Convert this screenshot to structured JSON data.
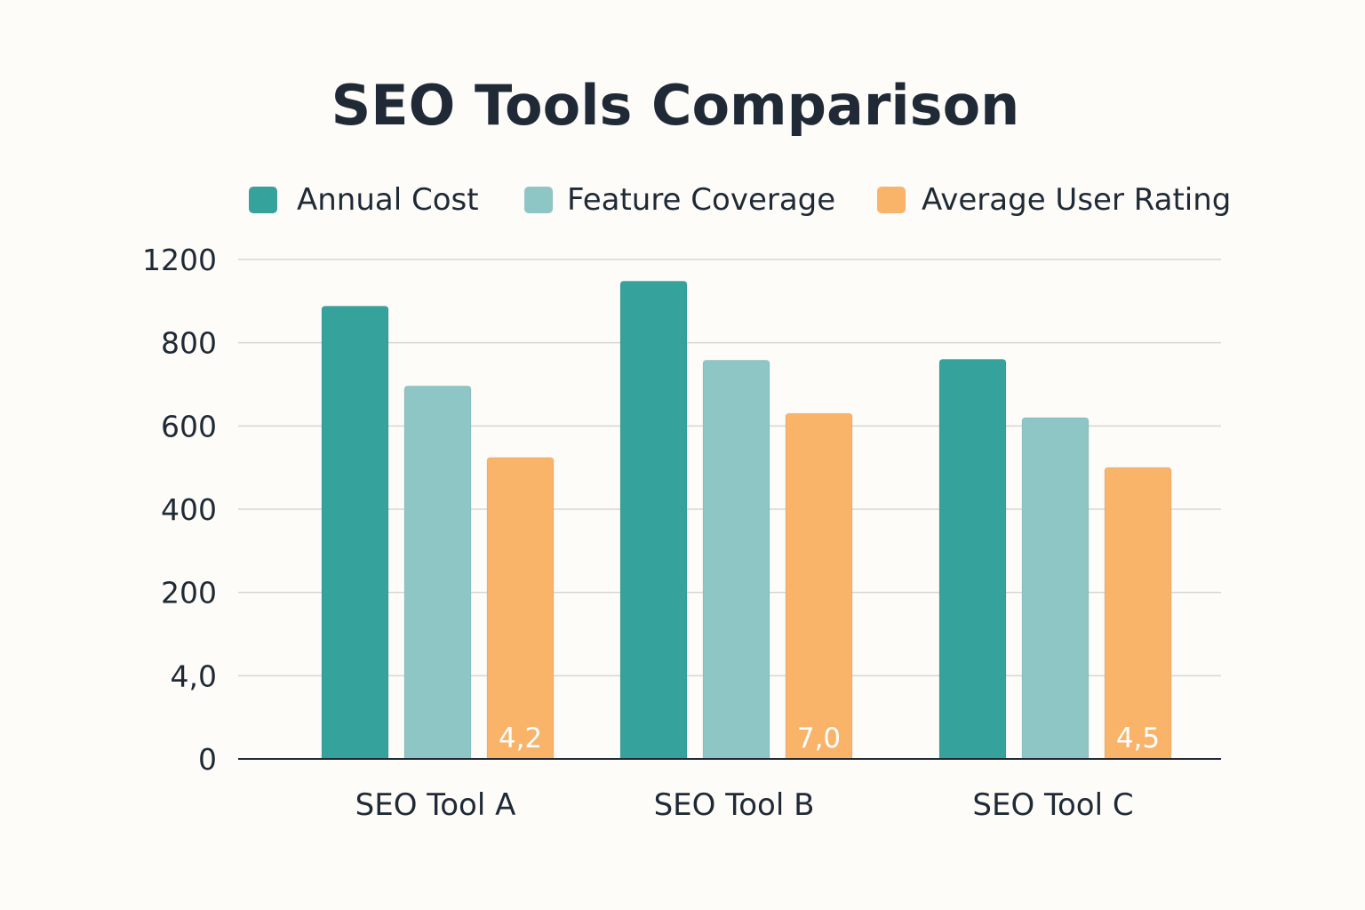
{
  "chart_data": {
    "type": "bar",
    "title": "SEO Tools Comparison",
    "xlabel": "",
    "ylabel": "",
    "categories": [
      "SEO Tool A",
      "SEO Tool B",
      "SEO Tool C"
    ],
    "series": [
      {
        "name": "Annual Cost",
        "color": "#35a29c",
        "values": [
          1088,
          1148,
          960
        ]
      },
      {
        "name": "Feature Coverage",
        "color": "#8ec6c5",
        "values": [
          896,
          958,
          820
        ]
      },
      {
        "name": "Average User Rating",
        "color": "#f9b46a",
        "values": [
          724,
          830,
          700
        ],
        "data_labels": [
          "4,2",
          "7,0",
          "4,5"
        ]
      }
    ],
    "ylim": [
      0,
      1200
    ],
    "y_tick_labels": [
      "0",
      "4,0",
      "200",
      "400",
      "600",
      "800",
      "1200"
    ],
    "grid": true,
    "legend_position": "top"
  }
}
